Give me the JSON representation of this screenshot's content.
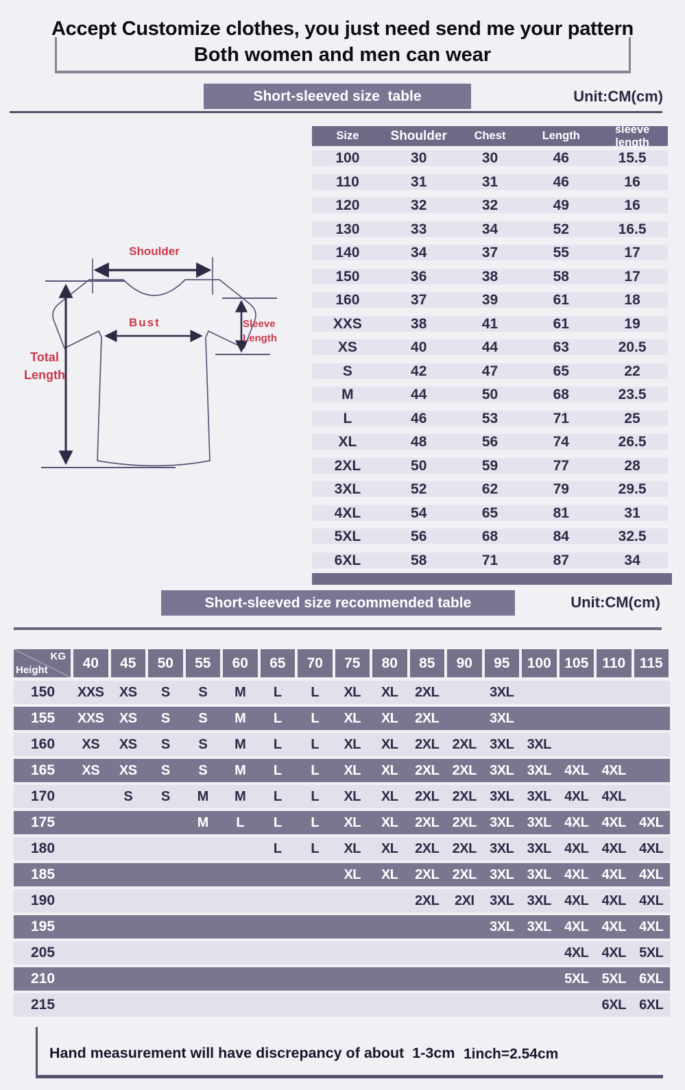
{
  "banner": {
    "line1": "Accept Customize clothes, you just need send me your pattern",
    "line2": "Both women and men can wear"
  },
  "size_section": {
    "title": "Short-sleeved size  table",
    "unit": "Unit:CM(cm)"
  },
  "recommend_section": {
    "title": "Short-sleeved size recommended table",
    "unit": "Unit:CM(cm)"
  },
  "diagram": {
    "shoulder_label": "Shoulder",
    "total_length_label": "Total\nLength",
    "bust_label": "Bust",
    "sleeve_length_label": "Sleeve\nLength"
  },
  "size_table": {
    "headers": [
      "Size",
      "Shoulder",
      "Chest",
      "Length",
      "sleeve length"
    ],
    "rows": [
      [
        "100",
        "30",
        "30",
        "46",
        "15.5"
      ],
      [
        "110",
        "31",
        "31",
        "46",
        "16"
      ],
      [
        "120",
        "32",
        "32",
        "49",
        "16"
      ],
      [
        "130",
        "33",
        "34",
        "52",
        "16.5"
      ],
      [
        "140",
        "34",
        "37",
        "55",
        "17"
      ],
      [
        "150",
        "36",
        "38",
        "58",
        "17"
      ],
      [
        "160",
        "37",
        "39",
        "61",
        "18"
      ],
      [
        "XXS",
        "38",
        "41",
        "61",
        "19"
      ],
      [
        "XS",
        "40",
        "44",
        "63",
        "20.5"
      ],
      [
        "S",
        "42",
        "47",
        "65",
        "22"
      ],
      [
        "M",
        "44",
        "50",
        "68",
        "23.5"
      ],
      [
        "L",
        "46",
        "53",
        "71",
        "25"
      ],
      [
        "XL",
        "48",
        "56",
        "74",
        "26.5"
      ],
      [
        "2XL",
        "50",
        "59",
        "77",
        "28"
      ],
      [
        "3XL",
        "52",
        "62",
        "79",
        "29.5"
      ],
      [
        "4XL",
        "54",
        "65",
        "81",
        "31"
      ],
      [
        "5XL",
        "56",
        "68",
        "84",
        "32.5"
      ],
      [
        "6XL",
        "58",
        "71",
        "87",
        "34"
      ]
    ]
  },
  "matrix": {
    "corner_top": "KG",
    "corner_bottom": "Height",
    "weights": [
      "40",
      "45",
      "50",
      "55",
      "60",
      "65",
      "70",
      "75",
      "80",
      "85",
      "90",
      "95",
      "100",
      "105",
      "110",
      "115"
    ],
    "rows": [
      {
        "height": "150",
        "cells": [
          "XXS",
          "XS",
          "S",
          "S",
          "M",
          "L",
          "L",
          "XL",
          "XL",
          "2XL",
          "",
          "3XL",
          "",
          "",
          "",
          ""
        ]
      },
      {
        "height": "155",
        "cells": [
          "XXS",
          "XS",
          "S",
          "S",
          "M",
          "L",
          "L",
          "XL",
          "XL",
          "2XL",
          "",
          "3XL",
          "",
          "",
          "",
          ""
        ]
      },
      {
        "height": "160",
        "cells": [
          "XS",
          "XS",
          "S",
          "S",
          "M",
          "L",
          "L",
          "XL",
          "XL",
          "2XL",
          "2XL",
          "3XL",
          "3XL",
          "",
          "",
          ""
        ]
      },
      {
        "height": "165",
        "cells": [
          "XS",
          "XS",
          "S",
          "S",
          "M",
          "L",
          "L",
          "XL",
          "XL",
          "2XL",
          "2XL",
          "3XL",
          "3XL",
          "4XL",
          "4XL",
          ""
        ]
      },
      {
        "height": "170",
        "cells": [
          "",
          "S",
          "S",
          "M",
          "M",
          "L",
          "L",
          "XL",
          "XL",
          "2XL",
          "2XL",
          "3XL",
          "3XL",
          "4XL",
          "4XL",
          ""
        ]
      },
      {
        "height": "175",
        "cells": [
          "",
          "",
          "",
          "M",
          "L",
          "L",
          "L",
          "XL",
          "XL",
          "2XL",
          "2XL",
          "3XL",
          "3XL",
          "4XL",
          "4XL",
          "4XL"
        ]
      },
      {
        "height": "180",
        "cells": [
          "",
          "",
          "",
          "",
          "",
          "L",
          "L",
          "XL",
          "XL",
          "2XL",
          "2XL",
          "3XL",
          "3XL",
          "4XL",
          "4XL",
          "4XL"
        ]
      },
      {
        "height": "185",
        "cells": [
          "",
          "",
          "",
          "",
          "",
          "",
          "",
          "XL",
          "XL",
          "2XL",
          "2XL",
          "3XL",
          "3XL",
          "4XL",
          "4XL",
          "4XL"
        ]
      },
      {
        "height": "190",
        "cells": [
          "",
          "",
          "",
          "",
          "",
          "",
          "",
          "",
          "",
          "2XL",
          "2XI",
          "3XL",
          "3XL",
          "4XL",
          "4XL",
          "4XL"
        ]
      },
      {
        "height": "195",
        "cells": [
          "",
          "",
          "",
          "",
          "",
          "",
          "",
          "",
          "",
          "",
          "",
          "3XL",
          "3XL",
          "4XL",
          "4XL",
          "4XL"
        ]
      },
      {
        "height": "205",
        "cells": [
          "",
          "",
          "",
          "",
          "",
          "",
          "",
          "",
          "",
          "",
          "",
          "",
          "",
          "4XL",
          "4XL",
          "5XL"
        ]
      },
      {
        "height": "210",
        "cells": [
          "",
          "",
          "",
          "",
          "",
          "",
          "",
          "",
          "",
          "",
          "",
          "",
          "",
          "5XL",
          "5XL",
          "6XL"
        ]
      },
      {
        "height": "215",
        "cells": [
          "",
          "",
          "",
          "",
          "",
          "",
          "",
          "",
          "",
          "",
          "",
          "",
          "",
          "",
          "6XL",
          "6XL"
        ]
      }
    ]
  },
  "footer": {
    "note": "Hand measurement will have discrepancy of about  1-3cm",
    "conversion": "1inch=2.54cm"
  },
  "colors": {
    "page_bg": "#f1f0f4",
    "title_box": "#7b7594",
    "table_header": "#6e6987",
    "row_light": "#e5e3ee",
    "matrix_row_dark": "#7b7590",
    "matrix_row_light": "#e2e0eb",
    "text_dark": "#2e2945",
    "label_red": "#c9394a",
    "line_gray": "#55506b"
  }
}
